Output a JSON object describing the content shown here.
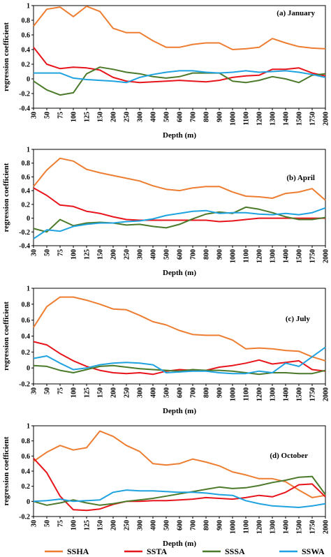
{
  "chart_data": {
    "type": "line",
    "x_categories": [
      "30",
      "50",
      "75",
      "100",
      "125",
      "150",
      "200",
      "250",
      "300",
      "400",
      "500",
      "600",
      "700",
      "800",
      "900",
      "1000",
      "1100",
      "1200",
      "1300",
      "1400",
      "1500",
      "1750",
      "2000"
    ],
    "colors": {
      "SSHA": "#ED7D31",
      "SSTA": "#E8141B",
      "SSSA": "#4B7A2A",
      "SSWA": "#1FA2E0"
    },
    "legend": [
      {
        "name": "SSHA",
        "color": "#ED7D31"
      },
      {
        "name": "SSTA",
        "color": "#E8141B"
      },
      {
        "name": "SSSA",
        "color": "#4B7A2A"
      },
      {
        "name": "SSWA",
        "color": "#1FA2E0"
      }
    ],
    "panels": [
      {
        "label": "(a) January",
        "xlabel": "Depth (m)",
        "ylabel": "regression coefficient",
        "ylim": [
          -0.4,
          1
        ],
        "yticks": [
          "-0.4",
          "-0.2",
          "0",
          "0.2",
          "0.4",
          "0.6",
          "0.8",
          "1"
        ],
        "series": [
          {
            "name": "SSHA",
            "values": [
              0.72,
              0.95,
              0.98,
              0.85,
              0.99,
              0.92,
              0.69,
              0.63,
              0.63,
              0.52,
              0.43,
              0.43,
              0.47,
              0.49,
              0.49,
              0.4,
              0.41,
              0.43,
              0.55,
              0.49,
              0.44,
              0.42,
              0.41
            ]
          },
          {
            "name": "SSTA",
            "values": [
              0.43,
              0.2,
              0.14,
              0.16,
              0.15,
              0.12,
              0.02,
              -0.03,
              -0.05,
              -0.04,
              -0.03,
              -0.02,
              -0.03,
              -0.04,
              -0.02,
              0.02,
              0.04,
              0.05,
              0.13,
              0.13,
              0.15,
              0.08,
              0.04
            ]
          },
          {
            "name": "SSSA",
            "values": [
              -0.03,
              -0.15,
              -0.22,
              -0.19,
              0.07,
              0.16,
              0.13,
              0.09,
              0.07,
              0.03,
              0.01,
              0.03,
              0.08,
              0.08,
              0.08,
              -0.03,
              -0.05,
              -0.02,
              0.03,
              0.0,
              -0.05,
              0.05,
              0.07
            ]
          },
          {
            "name": "SSWA",
            "values": [
              0.08,
              0.08,
              0.08,
              0.01,
              -0.01,
              -0.02,
              -0.03,
              -0.05,
              0.02,
              0.06,
              0.09,
              0.11,
              0.11,
              0.09,
              0.08,
              0.09,
              0.11,
              0.09,
              0.1,
              0.11,
              0.09,
              0.06,
              0.02
            ]
          }
        ]
      },
      {
        "label": "(b) April",
        "xlabel": "Depth (m)",
        "ylabel": "regression coefficient",
        "ylim": [
          -0.4,
          1
        ],
        "yticks": [
          "-0.4",
          "-0.2",
          "0",
          "0.2",
          "0.4",
          "0.6",
          "0.8",
          "1"
        ],
        "series": [
          {
            "name": "SSHA",
            "values": [
              0.46,
              0.7,
              0.87,
              0.83,
              0.71,
              0.66,
              0.62,
              0.58,
              0.54,
              0.47,
              0.42,
              0.4,
              0.44,
              0.46,
              0.46,
              0.38,
              0.32,
              0.31,
              0.29,
              0.36,
              0.38,
              0.43,
              0.26
            ]
          },
          {
            "name": "SSTA",
            "values": [
              0.44,
              0.33,
              0.19,
              0.17,
              0.1,
              0.07,
              0.02,
              -0.02,
              -0.03,
              -0.03,
              -0.03,
              -0.03,
              -0.03,
              -0.03,
              -0.05,
              -0.04,
              -0.02,
              0.0,
              0.0,
              0.0,
              0.0,
              0.0,
              0.0
            ]
          },
          {
            "name": "SSSA",
            "values": [
              -0.15,
              -0.2,
              -0.02,
              -0.11,
              -0.07,
              -0.06,
              -0.07,
              -0.1,
              -0.09,
              -0.12,
              -0.14,
              -0.09,
              -0.01,
              0.06,
              0.09,
              0.07,
              0.16,
              0.13,
              0.08,
              0.02,
              -0.02,
              -0.02,
              0.01
            ]
          },
          {
            "name": "SSWA",
            "values": [
              -0.3,
              -0.17,
              -0.19,
              -0.12,
              -0.09,
              -0.07,
              -0.07,
              -0.05,
              -0.04,
              -0.01,
              0.04,
              0.07,
              0.1,
              0.11,
              0.07,
              0.08,
              0.08,
              0.06,
              0.05,
              0.07,
              0.05,
              0.08,
              0.15
            ]
          }
        ]
      },
      {
        "label": "(c) July",
        "xlabel": "Depth (m)",
        "ylabel": "regression coefficient",
        "ylim": [
          -0.2,
          1
        ],
        "yticks": [
          "-0.2",
          "0",
          "0.2",
          "0.4",
          "0.6",
          "0.8",
          "1"
        ],
        "series": [
          {
            "name": "SSHA",
            "values": [
              0.51,
              0.77,
              0.89,
              0.89,
              0.85,
              0.8,
              0.74,
              0.73,
              0.66,
              0.58,
              0.54,
              0.47,
              0.42,
              0.41,
              0.41,
              0.35,
              0.24,
              0.25,
              0.24,
              0.22,
              0.21,
              0.14,
              0.09
            ]
          },
          {
            "name": "SSTA",
            "values": [
              0.33,
              0.29,
              0.18,
              0.09,
              0.02,
              -0.03,
              -0.06,
              -0.07,
              -0.06,
              -0.08,
              -0.04,
              -0.02,
              -0.03,
              -0.03,
              0.01,
              0.03,
              0.06,
              0.1,
              0.05,
              0.07,
              0.09,
              -0.02,
              -0.04
            ]
          },
          {
            "name": "SSSA",
            "values": [
              0.03,
              0.02,
              -0.03,
              -0.06,
              -0.02,
              0.02,
              0.03,
              0.01,
              -0.01,
              -0.02,
              -0.03,
              -0.04,
              -0.02,
              -0.03,
              -0.03,
              -0.04,
              -0.06,
              -0.08,
              -0.06,
              -0.06,
              -0.07,
              -0.07,
              -0.03
            ]
          },
          {
            "name": "SSWA",
            "values": [
              0.12,
              0.15,
              0.06,
              -0.02,
              0.0,
              0.04,
              0.06,
              0.07,
              0.06,
              0.04,
              -0.06,
              -0.05,
              -0.04,
              -0.04,
              -0.06,
              -0.07,
              -0.07,
              -0.04,
              -0.06,
              0.06,
              0.02,
              0.14,
              0.26
            ]
          }
        ]
      },
      {
        "label": "(d) October",
        "xlabel": "Depth (m)",
        "ylabel": "regression coefficient",
        "ylim": [
          -0.2,
          1
        ],
        "yticks": [
          "-0.2",
          "0",
          "0.2",
          "0.4",
          "0.6",
          "0.8",
          "1"
        ],
        "series": [
          {
            "name": "SSHA",
            "values": [
              0.53,
              0.65,
              0.74,
              0.68,
              0.71,
              0.93,
              0.86,
              0.74,
              0.66,
              0.5,
              0.48,
              0.5,
              0.56,
              0.52,
              0.47,
              0.39,
              0.35,
              0.3,
              0.3,
              0.26,
              0.15,
              0.05,
              0.08
            ]
          },
          {
            "name": "SSTA",
            "values": [
              0.57,
              0.38,
              0.07,
              -0.11,
              -0.12,
              -0.1,
              -0.04,
              0.0,
              0.0,
              0.01,
              0.01,
              0.02,
              0.03,
              0.05,
              0.04,
              0.03,
              0.05,
              0.08,
              0.06,
              0.12,
              0.22,
              0.23,
              0.06
            ]
          },
          {
            "name": "SSSA",
            "values": [
              0.0,
              -0.05,
              -0.02,
              0.02,
              -0.02,
              -0.05,
              -0.03,
              0.0,
              0.02,
              0.04,
              0.07,
              0.1,
              0.13,
              0.16,
              0.19,
              0.17,
              0.18,
              0.21,
              0.25,
              0.28,
              0.32,
              0.33,
              0.09
            ]
          },
          {
            "name": "SSWA",
            "values": [
              0.0,
              0.01,
              0.03,
              0.0,
              0.01,
              0.02,
              0.12,
              0.15,
              0.14,
              0.14,
              0.13,
              0.12,
              0.12,
              0.11,
              0.09,
              0.08,
              0.01,
              -0.03,
              -0.06,
              -0.07,
              -0.08,
              -0.06,
              -0.03
            ]
          }
        ]
      }
    ]
  }
}
